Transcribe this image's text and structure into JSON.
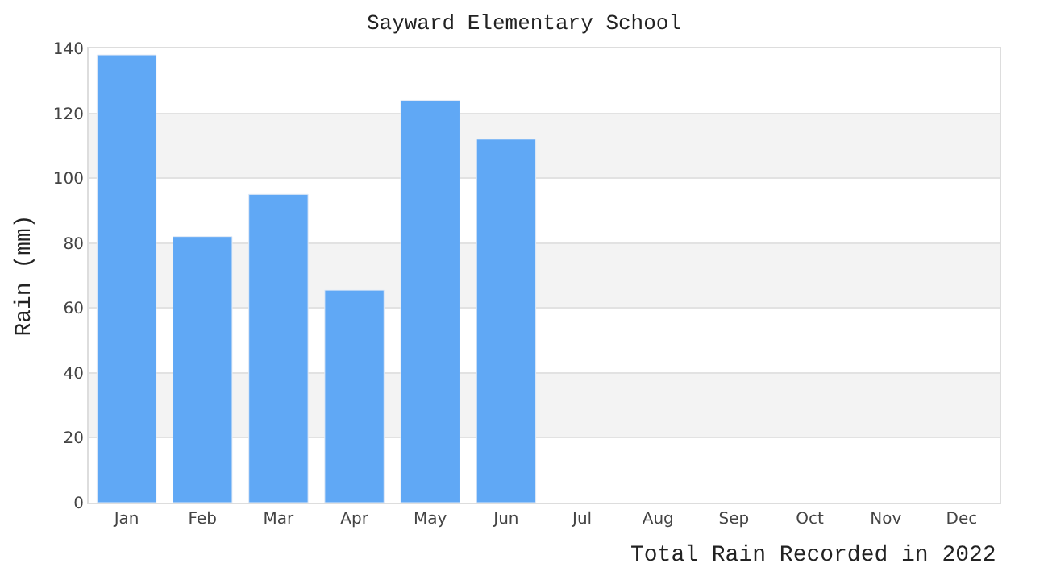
{
  "chart_data": {
    "type": "bar",
    "title": "Sayward Elementary School",
    "xlabel": "Total Rain Recorded in 2022",
    "ylabel": "Rain (mm)",
    "categories": [
      "Jan",
      "Feb",
      "Mar",
      "Apr",
      "May",
      "Jun",
      "Jul",
      "Aug",
      "Sep",
      "Oct",
      "Nov",
      "Dec"
    ],
    "values": [
      138,
      82,
      95,
      65.5,
      124,
      112,
      null,
      null,
      null,
      null,
      null,
      null
    ],
    "color": "#60a8f5",
    "ylim": [
      0,
      140
    ],
    "yticks": [
      0,
      20,
      40,
      60,
      80,
      100,
      120,
      140
    ],
    "grid": "y",
    "bands": [
      {
        "axis": "y",
        "from": 20,
        "to": 40,
        "color": "#f3f3f3"
      },
      {
        "axis": "y",
        "from": 60,
        "to": 80,
        "color": "#f3f3f3"
      },
      {
        "axis": "y",
        "from": 100,
        "to": 120,
        "color": "#f3f3f3"
      }
    ]
  }
}
